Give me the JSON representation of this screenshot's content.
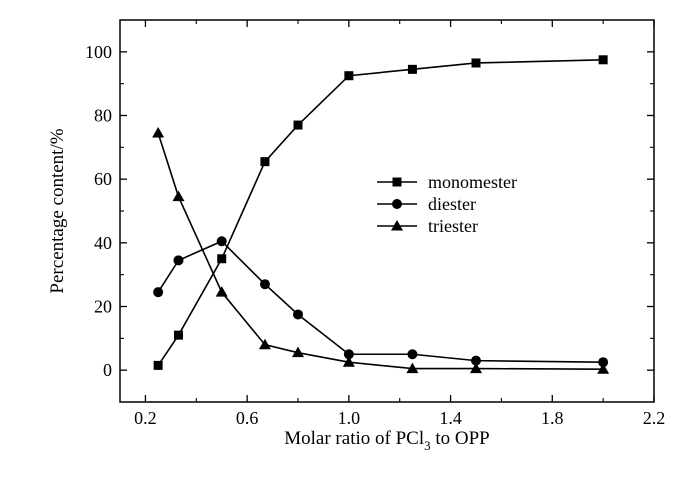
{
  "chart_data": {
    "type": "line",
    "title": "",
    "xlabel": {
      "prefix": "Molar ratio of PCl",
      "subscript": "3",
      "suffix": " to OPP"
    },
    "ylabel": "Percentage content/%",
    "xlim": [
      0.1,
      2.2
    ],
    "ylim": [
      -10,
      110
    ],
    "xticks": [
      "0.2",
      "0.6",
      "1.0",
      "1.4",
      "1.8",
      "2.2"
    ],
    "yticks": [
      "0",
      "20",
      "40",
      "60",
      "80",
      "100"
    ],
    "grid": false,
    "legend_position": "center-right",
    "x": [
      0.25,
      0.33,
      0.5,
      0.67,
      0.8,
      1.0,
      1.25,
      1.5,
      2.0
    ],
    "series": [
      {
        "name": "monomester",
        "marker": "square",
        "values": [
          1.5,
          11,
          35,
          65.5,
          77,
          92.5,
          94.5,
          96.5,
          97.5
        ]
      },
      {
        "name": "diester",
        "marker": "circle",
        "values": [
          24.5,
          34.5,
          40.5,
          27,
          17.5,
          5,
          5,
          3,
          2.5
        ]
      },
      {
        "name": "triester",
        "marker": "triangle",
        "values": [
          74.5,
          54.5,
          24.5,
          8,
          5.5,
          2.5,
          0.5,
          0.5,
          0.3
        ]
      }
    ]
  }
}
